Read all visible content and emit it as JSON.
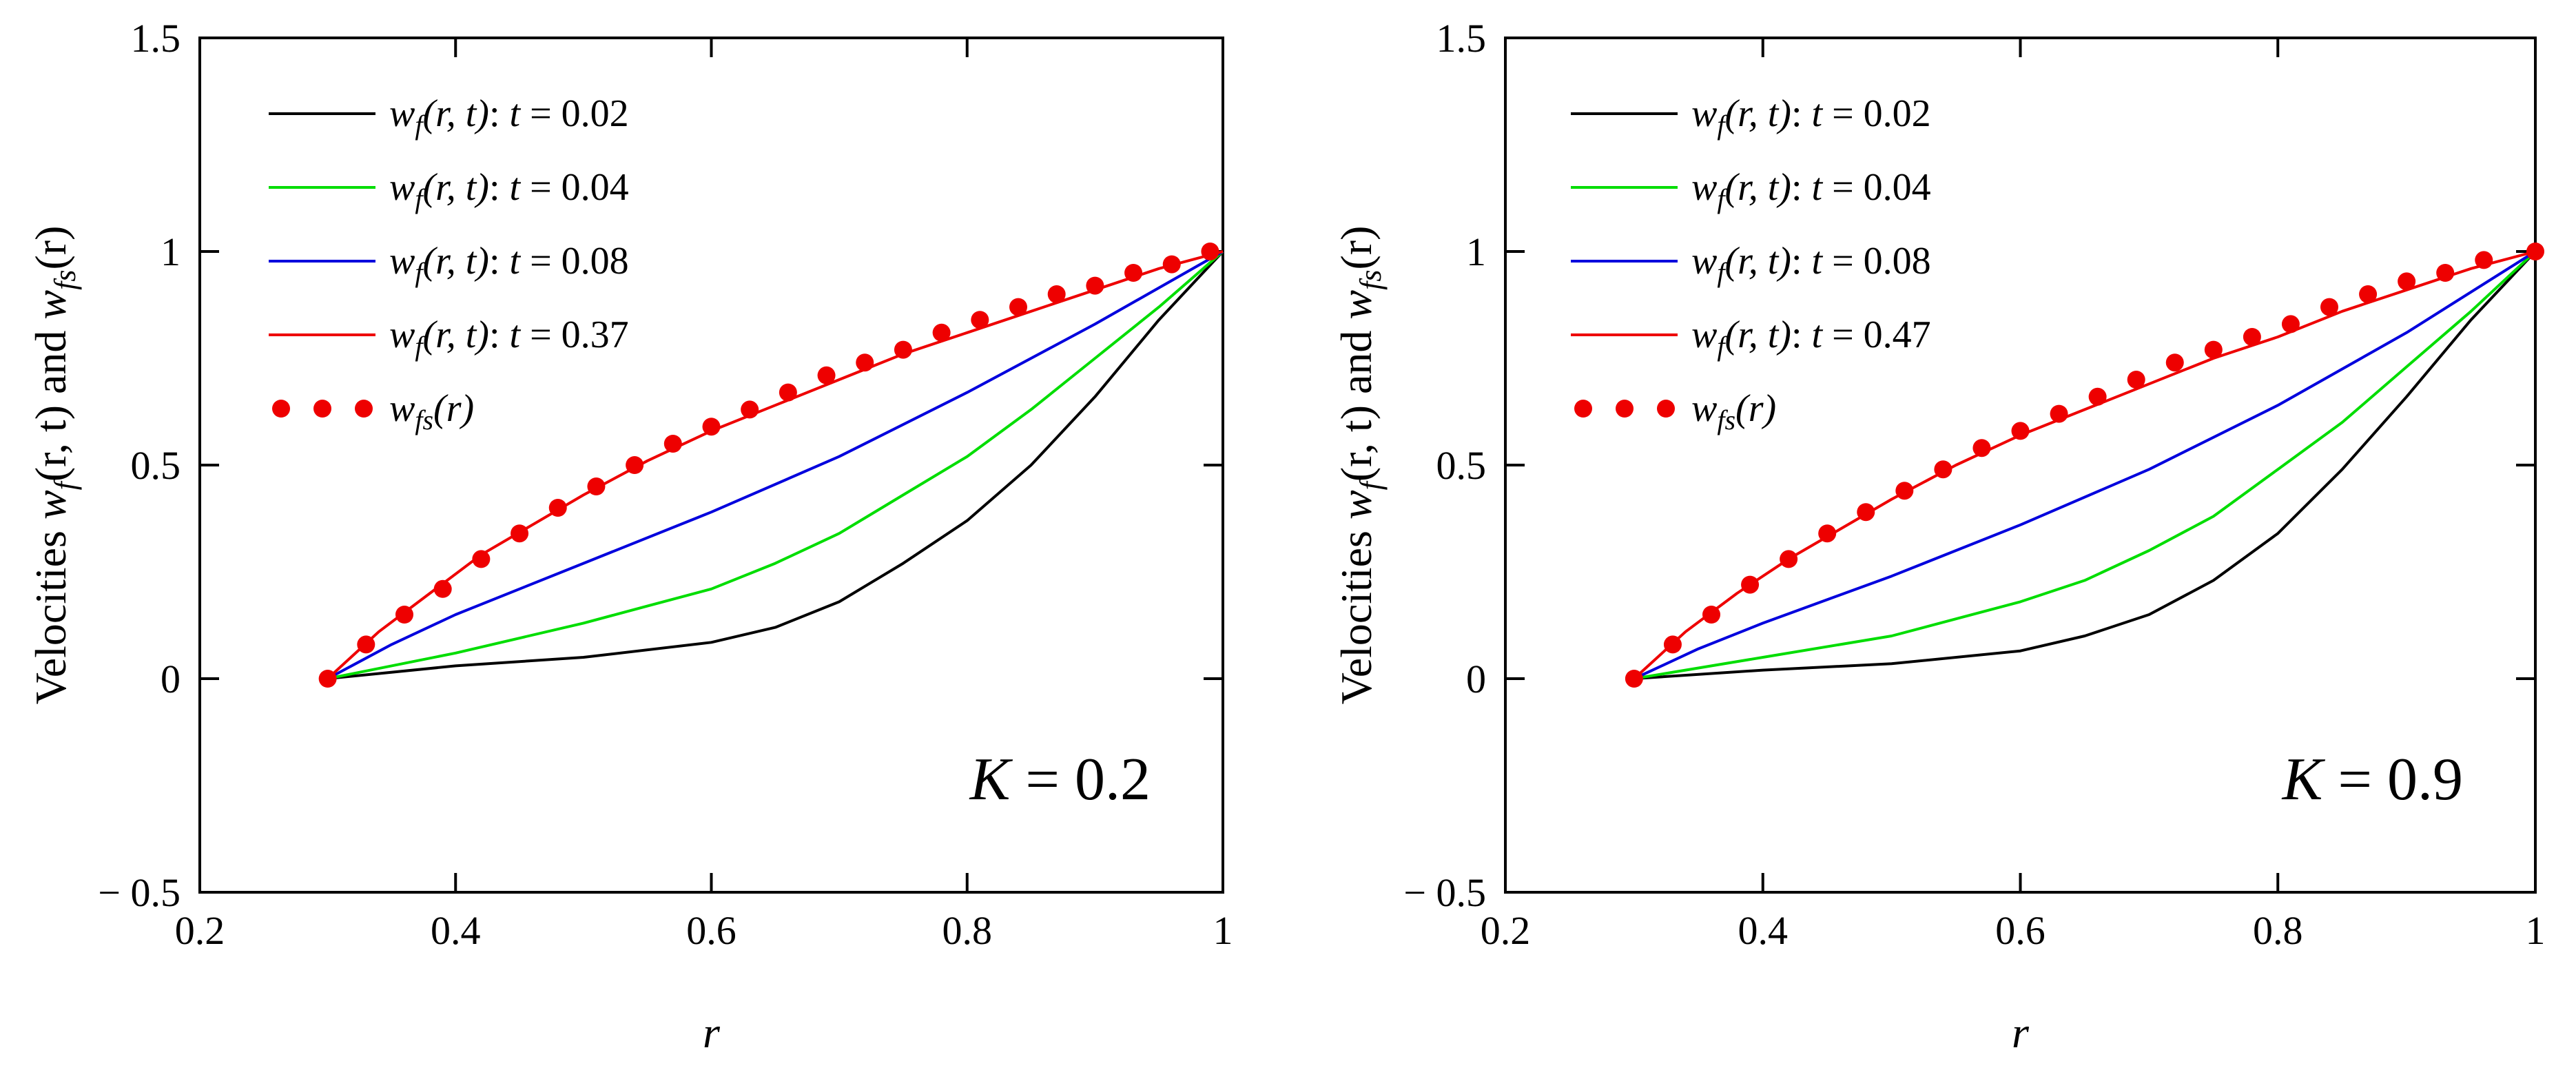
{
  "chart_data": [
    {
      "type": "line",
      "title": "",
      "annotation": "K = 0.2",
      "annotation_italic": "K",
      "annotation_rest": " = 0.2",
      "xlabel": "r",
      "ylabel": "Velocities w_f(r, t) and w_fs(r)",
      "ylabel_parts": {
        "prefix": "Velocities ",
        "w1": "w",
        "sub1": "f",
        "args1": "(r, t)",
        "mid": " and ",
        "w2": "w",
        "sub2": "fs",
        "args2": "(r)"
      },
      "xlim": [
        0.2,
        1.0
      ],
      "ylim": [
        -0.5,
        1.5
      ],
      "xticks": [
        0.2,
        0.4,
        0.6,
        0.8,
        1.0
      ],
      "xtick_labels": [
        "0.2",
        "0.4",
        "0.6",
        "0.8",
        "1"
      ],
      "yticks": [
        -0.5,
        0.0,
        0.5,
        1.0,
        1.5
      ],
      "ytick_labels": [
        "− 0.5",
        "0",
        "0.5",
        "1",
        "1.5"
      ],
      "legend_position": "top-left",
      "series": [
        {
          "name": "w_f(r,t): t = 0.02",
          "label_w": "w",
          "label_sub": "f",
          "label_args": "(r, t)",
          "label_t": ": t = 0.02",
          "color": "#000000",
          "style": "line",
          "x": [
            0.3,
            0.4,
            0.5,
            0.6,
            0.65,
            0.7,
            0.75,
            0.8,
            0.85,
            0.9,
            0.95,
            1.0
          ],
          "y": [
            0.0,
            0.03,
            0.05,
            0.085,
            0.12,
            0.18,
            0.27,
            0.37,
            0.5,
            0.66,
            0.84,
            1.0
          ]
        },
        {
          "name": "w_f(r,t): t = 0.04",
          "label_w": "w",
          "label_sub": "f",
          "label_args": "(r, t)",
          "label_t": ": t = 0.04",
          "color": "#00dd00",
          "style": "line",
          "x": [
            0.3,
            0.4,
            0.5,
            0.55,
            0.6,
            0.65,
            0.7,
            0.75,
            0.8,
            0.85,
            0.9,
            0.95,
            1.0
          ],
          "y": [
            0.0,
            0.06,
            0.13,
            0.17,
            0.21,
            0.27,
            0.34,
            0.43,
            0.52,
            0.63,
            0.75,
            0.87,
            1.0
          ]
        },
        {
          "name": "w_f(r,t): t = 0.08",
          "label_w": "w",
          "label_sub": "f",
          "label_args": "(r, t)",
          "label_t": ": t = 0.08",
          "color": "#0000dd",
          "style": "line",
          "x": [
            0.3,
            0.35,
            0.4,
            0.5,
            0.6,
            0.7,
            0.8,
            0.9,
            1.0
          ],
          "y": [
            0.0,
            0.08,
            0.15,
            0.27,
            0.39,
            0.52,
            0.67,
            0.83,
            1.0
          ]
        },
        {
          "name": "w_f(r,t): t = 0.37",
          "label_w": "w",
          "label_sub": "f",
          "label_args": "(r, t)",
          "label_t": ": t = 0.37",
          "color": "#ee0000",
          "style": "line",
          "x": [
            0.3,
            0.34,
            0.38,
            0.42,
            0.46,
            0.5,
            0.55,
            0.6,
            0.65,
            0.7,
            0.75,
            0.8,
            0.85,
            0.9,
            0.95,
            1.0
          ],
          "y": [
            0.0,
            0.11,
            0.2,
            0.29,
            0.36,
            0.43,
            0.51,
            0.58,
            0.64,
            0.7,
            0.76,
            0.81,
            0.86,
            0.91,
            0.96,
            1.0
          ]
        },
        {
          "name": "w_fs(r)",
          "label_w": "w",
          "label_sub": "fs",
          "label_args": "(r)",
          "label_t": "",
          "color": "#ee0000",
          "style": "points",
          "x": [
            0.3,
            0.33,
            0.36,
            0.39,
            0.42,
            0.45,
            0.48,
            0.51,
            0.54,
            0.57,
            0.6,
            0.63,
            0.66,
            0.69,
            0.72,
            0.75,
            0.78,
            0.81,
            0.84,
            0.87,
            0.9,
            0.93,
            0.96,
            0.99
          ],
          "y": [
            0.0,
            0.08,
            0.15,
            0.21,
            0.28,
            0.34,
            0.4,
            0.45,
            0.5,
            0.55,
            0.59,
            0.63,
            0.67,
            0.71,
            0.74,
            0.77,
            0.81,
            0.84,
            0.87,
            0.9,
            0.92,
            0.95,
            0.97,
            1.0
          ]
        }
      ]
    },
    {
      "type": "line",
      "title": "",
      "annotation": "K = 0.9",
      "annotation_italic": "K",
      "annotation_rest": " = 0.9",
      "xlabel": "r",
      "ylabel": "Velocities w_f(r, t) and w_fs(r)",
      "ylabel_parts": {
        "prefix": "Velocities ",
        "w1": "w",
        "sub1": "f",
        "args1": "(r, t)",
        "mid": " and ",
        "w2": "w",
        "sub2": "fs",
        "args2": "(r)"
      },
      "xlim": [
        0.2,
        1.0
      ],
      "ylim": [
        -0.5,
        1.5
      ],
      "xticks": [
        0.2,
        0.4,
        0.6,
        0.8,
        1.0
      ],
      "xtick_labels": [
        "0.2",
        "0.4",
        "0.6",
        "0.8",
        "1"
      ],
      "yticks": [
        -0.5,
        0.0,
        0.5,
        1.0,
        1.5
      ],
      "ytick_labels": [
        "− 0.5",
        "0",
        "0.5",
        "1",
        "1.5"
      ],
      "legend_position": "top-left",
      "series": [
        {
          "name": "w_f(r,t): t = 0.02",
          "label_w": "w",
          "label_sub": "f",
          "label_args": "(r, t)",
          "label_t": ": t = 0.02",
          "color": "#000000",
          "style": "line",
          "x": [
            0.3,
            0.4,
            0.5,
            0.6,
            0.65,
            0.7,
            0.75,
            0.8,
            0.85,
            0.9,
            0.95,
            1.0
          ],
          "y": [
            0.0,
            0.02,
            0.035,
            0.065,
            0.1,
            0.15,
            0.23,
            0.34,
            0.49,
            0.66,
            0.84,
            1.0
          ]
        },
        {
          "name": "w_f(r,t): t = 0.04",
          "label_w": "w",
          "label_sub": "f",
          "label_args": "(r, t)",
          "label_t": ": t = 0.04",
          "color": "#00dd00",
          "style": "line",
          "x": [
            0.3,
            0.4,
            0.5,
            0.55,
            0.6,
            0.65,
            0.7,
            0.75,
            0.8,
            0.85,
            0.9,
            0.95,
            1.0
          ],
          "y": [
            0.0,
            0.05,
            0.1,
            0.14,
            0.18,
            0.23,
            0.3,
            0.38,
            0.49,
            0.6,
            0.73,
            0.86,
            1.0
          ]
        },
        {
          "name": "w_f(r,t): t = 0.08",
          "label_w": "w",
          "label_sub": "f",
          "label_args": "(r, t)",
          "label_t": ": t = 0.08",
          "color": "#0000dd",
          "style": "line",
          "x": [
            0.3,
            0.35,
            0.4,
            0.5,
            0.6,
            0.7,
            0.8,
            0.9,
            1.0
          ],
          "y": [
            0.0,
            0.07,
            0.13,
            0.24,
            0.36,
            0.49,
            0.64,
            0.81,
            1.0
          ]
        },
        {
          "name": "w_f(r,t): t = 0.47",
          "label_w": "w",
          "label_sub": "f",
          "label_args": "(r, t)",
          "label_t": ": t = 0.47",
          "color": "#ee0000",
          "style": "line",
          "x": [
            0.3,
            0.34,
            0.38,
            0.42,
            0.46,
            0.5,
            0.55,
            0.6,
            0.65,
            0.7,
            0.75,
            0.8,
            0.85,
            0.9,
            0.95,
            1.0
          ],
          "y": [
            0.0,
            0.11,
            0.2,
            0.28,
            0.35,
            0.42,
            0.5,
            0.57,
            0.63,
            0.69,
            0.75,
            0.8,
            0.86,
            0.91,
            0.96,
            1.0
          ]
        },
        {
          "name": "w_fs(r)",
          "label_w": "w",
          "label_sub": "fs",
          "label_args": "(r)",
          "label_t": "",
          "color": "#ee0000",
          "style": "points",
          "x": [
            0.3,
            0.33,
            0.36,
            0.39,
            0.42,
            0.45,
            0.48,
            0.51,
            0.54,
            0.57,
            0.6,
            0.63,
            0.66,
            0.69,
            0.72,
            0.75,
            0.78,
            0.81,
            0.84,
            0.87,
            0.9,
            0.93,
            0.96,
            1.0
          ],
          "y": [
            0.0,
            0.08,
            0.15,
            0.22,
            0.28,
            0.34,
            0.39,
            0.44,
            0.49,
            0.54,
            0.58,
            0.62,
            0.66,
            0.7,
            0.74,
            0.77,
            0.8,
            0.83,
            0.87,
            0.9,
            0.93,
            0.95,
            0.98,
            1.0
          ]
        }
      ]
    }
  ]
}
